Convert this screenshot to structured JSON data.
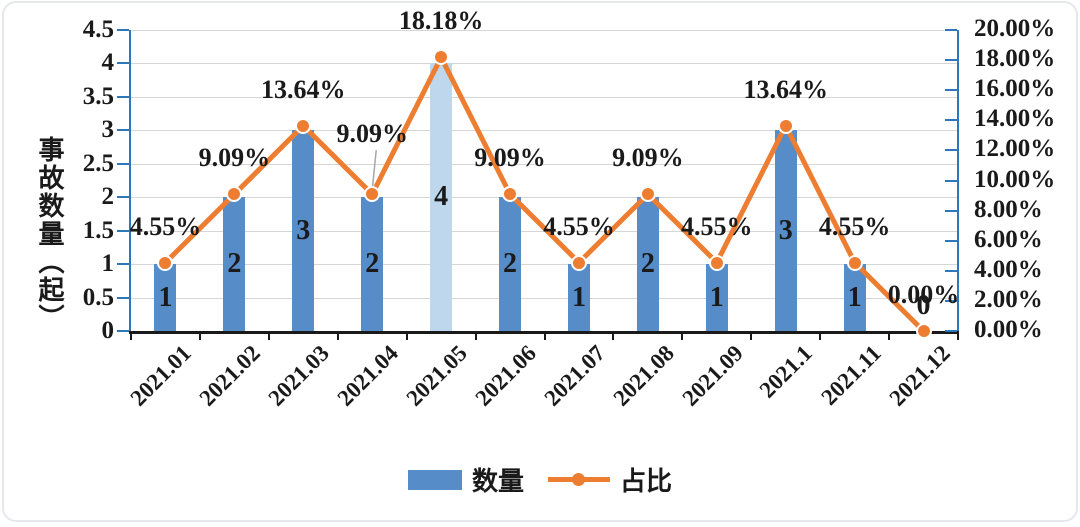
{
  "chart_data": {
    "type": "bar",
    "subtype": "combo-bar-line-dual-axis",
    "title": "",
    "categories": [
      "2021.01",
      "2021.02",
      "2021.03",
      "2021.04",
      "2021.05",
      "2021.06",
      "2021.07",
      "2021.08",
      "2021.09",
      "2021.1",
      "2021.11",
      "2021.12"
    ],
    "series": [
      {
        "name": "数量",
        "type": "bar",
        "axis": "left",
        "values": [
          1,
          2,
          3,
          2,
          4,
          2,
          1,
          2,
          1,
          3,
          1,
          0
        ],
        "value_labels": [
          "1",
          "2",
          "3",
          "2",
          "4",
          "2",
          "1",
          "2",
          "1",
          "3",
          "1",
          "0"
        ]
      },
      {
        "name": "占比",
        "type": "line",
        "axis": "right",
        "values": [
          4.55,
          9.09,
          13.64,
          9.09,
          18.18,
          9.09,
          4.55,
          9.09,
          4.55,
          13.64,
          4.55,
          0
        ],
        "value_labels": [
          "4.55%",
          "9.09%",
          "13.64%",
          "9.09%",
          "18.18%",
          "9.09%",
          "4.55%",
          "9.09%",
          "4.55%",
          "13.64%",
          "4.55%",
          "0.00%"
        ]
      }
    ],
    "left_axis": {
      "title": "事故数量（起）",
      "min": 0,
      "max": 4.5,
      "step": 0.5,
      "tick_labels": [
        "0",
        "0.5",
        "1",
        "1.5",
        "2",
        "2.5",
        "3",
        "3.5",
        "4",
        "4.5"
      ]
    },
    "right_axis": {
      "min": 0,
      "max": 20,
      "step": 2,
      "tick_labels": [
        "0.00%",
        "2.00%",
        "4.00%",
        "6.00%",
        "8.00%",
        "10.00%",
        "12.00%",
        "14.00%",
        "16.00%",
        "18.00%",
        "20.00%"
      ]
    },
    "grid": "horizontal gridlines at left-axis 0.5 steps",
    "legend_position": "bottom",
    "highlight_bar_index": 4,
    "annotations": {
      "leader_line_index": 3,
      "raised_label_offset": -60,
      "default_label_offset": -36
    },
    "colors": {
      "bar": "#568cc8",
      "bar_highlight": "#bed7ed",
      "line": "#ed7d31",
      "axis": "#2e77bb",
      "x_axis": "#1a1a1a",
      "gridline": "#d6d6d6",
      "text": "#1a1a1a",
      "leader": "#a6a6a6"
    }
  }
}
